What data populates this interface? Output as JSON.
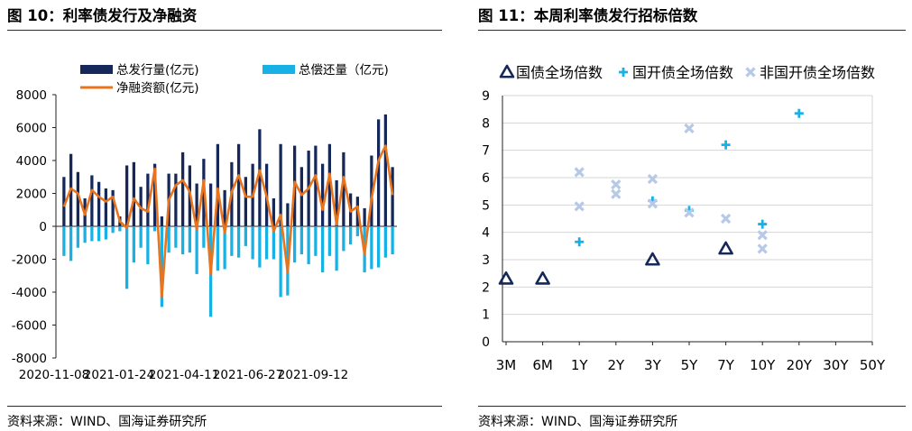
{
  "left": {
    "title": "图 10：利率债发行及净融资",
    "source": "资料来源：WIND、国海证券研究所"
  },
  "right": {
    "title": "图 11：本周利率债发行招标倍数",
    "source": "资料来源：WIND、国海证券研究所"
  },
  "colors": {
    "navy": "#16285a",
    "cyan": "#18b1e6",
    "orange": "#e8741e",
    "lightblue": "#b6c9e6",
    "rule": "#2b2b2b"
  },
  "chart_data": [
    {
      "type": "bar",
      "subtype": "bar+line",
      "title": "",
      "x_tick_labels": [
        "2020-11-08",
        "2021-01-24",
        "2021-04-11",
        "2021-06-27",
        "2021-09-12"
      ],
      "ylim": [
        -8000,
        8000
      ],
      "y_ticks": [
        8000,
        6000,
        4000,
        2000,
        0,
        -2000,
        -4000,
        -6000,
        -8000
      ],
      "legend": [
        "总发行量(亿元)",
        "总偿还量（亿元)",
        "净融资额(亿元)"
      ],
      "series": [
        {
          "name": "总发行量(亿元)",
          "kind": "bar",
          "values": [
            3000,
            4400,
            3300,
            1700,
            3100,
            2700,
            2300,
            2200,
            600,
            3700,
            3900,
            2400,
            3200,
            3800,
            600,
            3200,
            3200,
            4500,
            3700,
            2600,
            4100,
            2600,
            5000,
            2200,
            3900,
            5000,
            3000,
            3800,
            5900,
            3800,
            1700,
            5000,
            1400,
            4900,
            3600,
            4600,
            4900,
            3800,
            5000,
            2800,
            4500,
            2000,
            1800,
            1100,
            4300,
            6500,
            6800,
            3600
          ]
        },
        {
          "name": "总偿还量（亿元)",
          "kind": "bar",
          "values": [
            -1800,
            -2100,
            -1300,
            -1000,
            -900,
            -900,
            -800,
            -400,
            -300,
            -3800,
            -2200,
            -1300,
            -2300,
            -300,
            -4900,
            -1600,
            -1300,
            -1700,
            -1600,
            -2900,
            -1300,
            -5500,
            -2700,
            -2600,
            -1800,
            -1900,
            -1200,
            -2000,
            -2500,
            -2000,
            -2000,
            -4300,
            -4200,
            -2200,
            -1700,
            -2300,
            -1800,
            -2800,
            -1800,
            -2700,
            -1500,
            -1100,
            -600,
            -2800,
            -2600,
            -2500,
            -1900,
            -1700
          ]
        },
        {
          "name": "净融资额(亿元)",
          "kind": "line",
          "values": [
            1200,
            2300,
            2000,
            700,
            2200,
            1800,
            1500,
            1800,
            300,
            -100,
            1700,
            1100,
            900,
            3500,
            -4300,
            1600,
            2500,
            2800,
            2100,
            -200,
            2800,
            -2900,
            2300,
            -400,
            2100,
            3100,
            1800,
            1800,
            3400,
            1800,
            -300,
            700,
            -2800,
            2700,
            1900,
            2300,
            3100,
            1000,
            3200,
            100,
            3000,
            900,
            1200,
            -1700,
            1700,
            4000,
            4900,
            1900
          ]
        }
      ]
    },
    {
      "type": "scatter",
      "title": "",
      "categories": [
        "3M",
        "6M",
        "1Y",
        "2Y",
        "3Y",
        "5Y",
        "7Y",
        "10Y",
        "20Y",
        "30Y",
        "50Y"
      ],
      "ylim": [
        0,
        9
      ],
      "y_ticks": [
        0,
        1,
        2,
        3,
        4,
        5,
        6,
        7,
        8,
        9
      ],
      "legend": [
        "国债全场倍数",
        "国开债全场倍数",
        "非国开债全场倍数"
      ],
      "series": [
        {
          "name": "国债全场倍数",
          "marker": "triangle",
          "points": [
            {
              "x": "3M",
              "y": 2.3
            },
            {
              "x": "6M",
              "y": 2.3
            },
            {
              "x": "3Y",
              "y": 3.0
            },
            {
              "x": "7Y",
              "y": 3.4
            }
          ]
        },
        {
          "name": "国开债全场倍数",
          "marker": "plus",
          "points": [
            {
              "x": "1Y",
              "y": 3.65
            },
            {
              "x": "3Y",
              "y": 5.15
            },
            {
              "x": "5Y",
              "y": 4.8
            },
            {
              "x": "7Y",
              "y": 7.2
            },
            {
              "x": "10Y",
              "y": 4.3
            },
            {
              "x": "20Y",
              "y": 8.35
            }
          ]
        },
        {
          "name": "非国开债全场倍数",
          "marker": "x",
          "points": [
            {
              "x": "1Y",
              "y": 6.2
            },
            {
              "x": "1Y",
              "y": 4.95
            },
            {
              "x": "2Y",
              "y": 5.75
            },
            {
              "x": "2Y",
              "y": 5.4
            },
            {
              "x": "3Y",
              "y": 5.95
            },
            {
              "x": "3Y",
              "y": 5.05
            },
            {
              "x": "5Y",
              "y": 7.8
            },
            {
              "x": "5Y",
              "y": 4.72
            },
            {
              "x": "7Y",
              "y": 4.5
            },
            {
              "x": "10Y",
              "y": 3.9
            },
            {
              "x": "10Y",
              "y": 3.4
            }
          ]
        }
      ]
    }
  ]
}
